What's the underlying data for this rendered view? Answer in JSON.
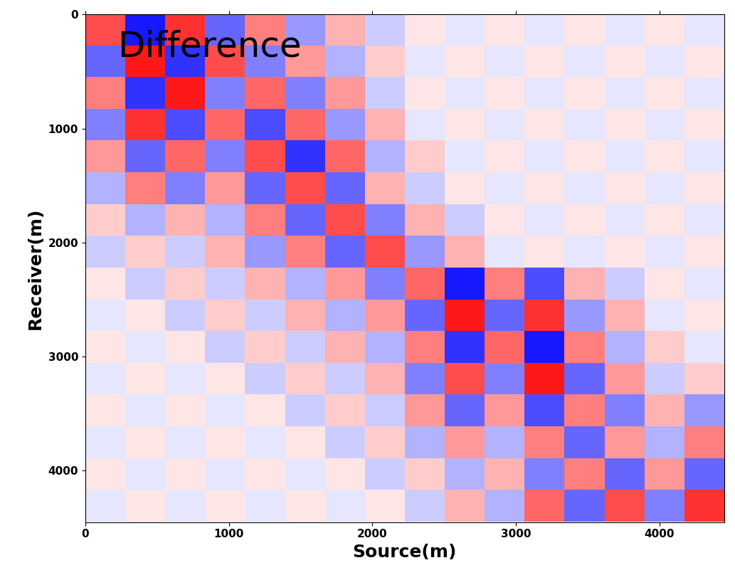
{
  "chart_data": {
    "type": "heatmap",
    "annotation": "Difference",
    "x_label": "Source(m)",
    "y_label": "Receiver(m)",
    "xlim": [
      0,
      4450
    ],
    "ylim": [
      4450,
      0
    ],
    "xticks": [
      0,
      1000,
      2000,
      3000,
      4000
    ],
    "yticks": [
      0,
      1000,
      2000,
      3000,
      4000
    ],
    "color": "bwr",
    "clim": [
      -1,
      1
    ],
    "cells": [
      [
        0.7,
        -0.9,
        0.8,
        -0.6,
        0.5,
        -0.4,
        0.3,
        -0.2,
        0.1,
        -0.1,
        0.1,
        -0.1,
        0.1,
        -0.1,
        0.1,
        -0.1
      ],
      [
        -0.6,
        0.9,
        -0.8,
        0.7,
        -0.5,
        0.4,
        -0.3,
        0.2,
        -0.1,
        0.1,
        -0.1,
        0.1,
        -0.1,
        0.1,
        -0.1,
        0.1
      ],
      [
        0.5,
        -0.8,
        0.9,
        -0.5,
        0.6,
        -0.5,
        0.4,
        -0.2,
        0.1,
        -0.1,
        0.1,
        -0.1,
        0.1,
        -0.1,
        0.1,
        -0.1
      ],
      [
        -0.5,
        0.8,
        -0.7,
        0.6,
        -0.7,
        0.6,
        -0.4,
        0.3,
        -0.1,
        0.1,
        -0.1,
        0.1,
        -0.1,
        0.1,
        -0.1,
        0.1
      ],
      [
        0.4,
        -0.6,
        0.6,
        -0.5,
        0.7,
        -0.8,
        0.6,
        -0.3,
        0.2,
        -0.1,
        0.1,
        -0.1,
        0.1,
        -0.1,
        0.1,
        -0.1
      ],
      [
        -0.3,
        0.5,
        -0.5,
        0.4,
        -0.6,
        0.7,
        -0.6,
        0.3,
        -0.2,
        0.1,
        -0.1,
        0.1,
        -0.1,
        0.1,
        -0.1,
        0.1
      ],
      [
        0.2,
        -0.3,
        0.3,
        -0.3,
        0.5,
        -0.6,
        0.7,
        -0.5,
        0.3,
        -0.2,
        0.1,
        -0.1,
        0.1,
        -0.1,
        0.1,
        -0.1
      ],
      [
        -0.2,
        0.2,
        -0.2,
        0.3,
        -0.4,
        0.5,
        -0.6,
        0.7,
        -0.4,
        0.3,
        -0.1,
        0.1,
        -0.1,
        0.1,
        -0.1,
        0.1
      ],
      [
        0.1,
        -0.2,
        0.2,
        -0.2,
        0.3,
        -0.3,
        0.4,
        -0.5,
        0.6,
        -0.9,
        0.5,
        -0.7,
        0.3,
        -0.2,
        0.1,
        -0.1
      ],
      [
        -0.1,
        0.1,
        -0.2,
        0.2,
        -0.2,
        0.3,
        -0.3,
        0.4,
        -0.6,
        0.9,
        -0.6,
        0.8,
        -0.4,
        0.3,
        -0.1,
        0.1
      ],
      [
        0.1,
        -0.1,
        0.1,
        -0.2,
        0.2,
        -0.2,
        0.3,
        -0.3,
        0.5,
        -0.8,
        0.6,
        -0.9,
        0.5,
        -0.3,
        0.2,
        -0.1
      ],
      [
        -0.1,
        0.1,
        -0.1,
        0.1,
        -0.2,
        0.2,
        -0.2,
        0.3,
        -0.5,
        0.7,
        -0.5,
        0.9,
        -0.6,
        0.4,
        -0.2,
        0.2
      ],
      [
        0.1,
        -0.1,
        0.1,
        -0.1,
        0.1,
        -0.2,
        0.2,
        -0.2,
        0.4,
        -0.6,
        0.4,
        -0.7,
        0.5,
        -0.5,
        0.3,
        -0.4
      ],
      [
        -0.1,
        0.1,
        -0.1,
        0.1,
        -0.1,
        0.1,
        -0.2,
        0.2,
        -0.3,
        0.4,
        -0.3,
        0.5,
        -0.6,
        0.4,
        -0.3,
        0.5
      ],
      [
        0.1,
        -0.1,
        0.1,
        -0.1,
        0.1,
        -0.1,
        0.1,
        -0.2,
        0.2,
        -0.3,
        0.3,
        -0.5,
        0.5,
        -0.6,
        0.4,
        -0.6
      ],
      [
        -0.1,
        0.1,
        -0.1,
        0.1,
        -0.1,
        0.1,
        -0.1,
        0.1,
        -0.2,
        0.3,
        -0.3,
        0.6,
        -0.6,
        0.7,
        -0.5,
        0.8
      ]
    ]
  }
}
